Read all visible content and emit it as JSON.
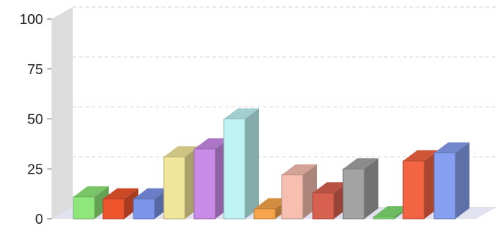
{
  "chart_data": {
    "type": "bar",
    "style": "3d",
    "ylim": [
      0,
      100
    ],
    "yticks": [
      "0",
      "25",
      "50",
      "75",
      "100"
    ],
    "grid": true,
    "legend": "none",
    "bars": [
      {
        "value": 11,
        "color": "#8fe67a"
      },
      {
        "value": 10,
        "color": "#f0562e"
      },
      {
        "value": 10,
        "color": "#7b94ea"
      },
      {
        "value": 31,
        "color": "#f1e59a"
      },
      {
        "value": 35,
        "color": "#c98be8"
      },
      {
        "value": 50,
        "color": "#bdf3f3"
      },
      {
        "value": 5,
        "color": "#f6a54b"
      },
      {
        "value": 22,
        "color": "#f7bfb0"
      },
      {
        "value": 13,
        "color": "#d8604f"
      },
      {
        "value": 25,
        "color": "#a3a3a3"
      },
      {
        "value": 1,
        "color": "#7fdc72"
      },
      {
        "value": 29,
        "color": "#f36443"
      },
      {
        "value": 33,
        "color": "#879ff0"
      }
    ]
  }
}
